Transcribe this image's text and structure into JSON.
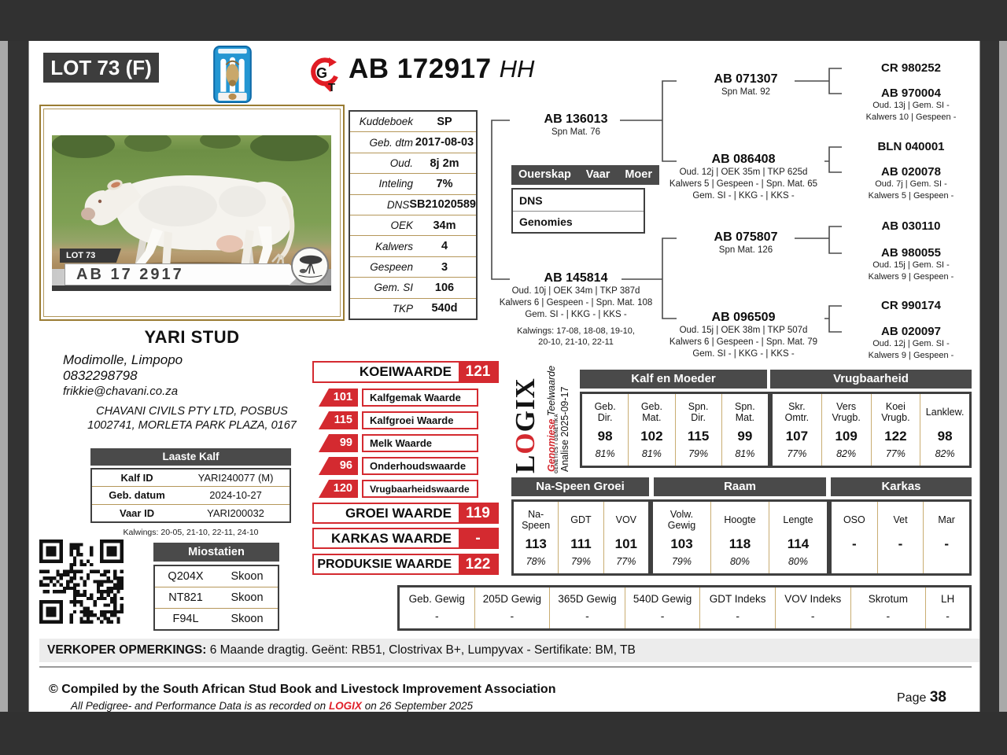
{
  "page": {
    "lot_badge": "LOT 73 (F)",
    "title_id": "AB 172917",
    "title_suffix": "HH",
    "page_label": "Page",
    "page_number": "38"
  },
  "logos": {
    "gt_g": "G",
    "gt_t": "T",
    "logix_l": "L",
    "logix_o": "O",
    "logix_gix": "GIX",
    "logix_tagline": "GENETICS / GENETIKA",
    "logix_line1_red": "Genomiese",
    "logix_line1_black": " Teelwaarde",
    "logix_line2": "Analise 2025-09-17"
  },
  "photo": {
    "lot_tag": "LOT 73",
    "animal_id": "AB 17 2917"
  },
  "info_table": {
    "rows": [
      {
        "label": "Kuddeboek",
        "value": "SP"
      },
      {
        "label": "Geb. dtm",
        "value": "2017-08-03"
      },
      {
        "label": "Oud.",
        "value": "8j 2m"
      },
      {
        "label": "Inteling",
        "value": "7%"
      },
      {
        "label": "DNS",
        "value": "SB21020589"
      },
      {
        "label": "OEK",
        "value": "34m"
      },
      {
        "label": "Kalwers",
        "value": "4"
      },
      {
        "label": "Gespeen",
        "value": "3"
      },
      {
        "label": "Gem. SI",
        "value": "106"
      },
      {
        "label": "TKP",
        "value": "540d"
      }
    ]
  },
  "ouerskap": {
    "headers": [
      "Ouerskap",
      "Vaar",
      "Moer"
    ],
    "rows": [
      "DNS",
      "Genomies"
    ]
  },
  "pedigree": {
    "sire": {
      "id": "AB 136013",
      "line1": "Spn Mat. 76"
    },
    "dam": {
      "id": "AB 145814",
      "line1": "Oud. 10j | OEK 34m | TKP 387d",
      "line2": "Kalwers 6 | Gespeen - | Spn. Mat. 108",
      "line3": "Gem. SI - | KKG - | KKS -",
      "kalwings1": "Kalwings: 17-08, 18-08, 19-10,",
      "kalwings2": "20-10, 21-10, 22-11"
    },
    "gen2": [
      {
        "id": "AB 071307",
        "line1": "Spn Mat. 92"
      },
      {
        "id": "AB 086408",
        "line1": "Oud. 12j | OEK 35m | TKP 625d",
        "line2": "Kalwers 5 | Gespeen - | Spn. Mat. 65",
        "line3": "Gem. SI - | KKG - | KKS -"
      },
      {
        "id": "AB 075807",
        "line1": "Spn Mat. 126"
      },
      {
        "id": "AB 096509",
        "line1": "Oud. 15j | OEK 38m | TKP 507d",
        "line2": "Kalwers 6 | Gespeen - | Spn. Mat. 79",
        "line3": "Gem. SI - | KKG - | KKS -"
      }
    ],
    "gen3": [
      {
        "id": "CR 980252"
      },
      {
        "id": "AB 970004",
        "line1": "Oud. 13j | Gem. SI -",
        "line2": "Kalwers 10 | Gespeen -"
      },
      {
        "id": "BLN 040001"
      },
      {
        "id": "AB 020078",
        "line1": "Oud. 7j | Gem. SI -",
        "line2": "Kalwers 5 | Gespeen -"
      },
      {
        "id": "AB 030110"
      },
      {
        "id": "AB 980055",
        "line1": "Oud. 15j | Gem. SI -",
        "line2": "Kalwers 9 | Gespeen -"
      },
      {
        "id": "CR 990174"
      },
      {
        "id": "AB 020097",
        "line1": "Oud. 12j | Gem. SI -",
        "line2": "Kalwers 9 | Gespeen -"
      }
    ]
  },
  "breeder": {
    "stud_name": "YARI STUD",
    "location": "Modimolle, Limpopo",
    "phone": "0832298798",
    "email": "frikkie@chavani.co.za",
    "address1": "CHAVANI CIVILS PTY LTD, POSBUS",
    "address2": "1002741, MORLETA PARK PLAZA, 0167"
  },
  "laaste_kalf": {
    "header": "Laaste Kalf",
    "rows": [
      {
        "label": "Kalf ID",
        "value": "YARI240077 (M)"
      },
      {
        "label": "Geb. datum",
        "value": "2024-10-27"
      },
      {
        "label": "Vaar ID",
        "value": "YARI200032"
      }
    ],
    "kalwings": "Kalwings: 20-05, 21-10, 22-11, 24-10"
  },
  "miostatien": {
    "header": "Miostatien",
    "rows": [
      {
        "code": "Q204X",
        "status": "Skoon"
      },
      {
        "code": "NT821",
        "status": "Skoon"
      },
      {
        "code": "F94L",
        "status": "Skoon"
      }
    ]
  },
  "waardes": {
    "main": {
      "label": "KOEIWAARDE",
      "value": "121"
    },
    "sub": [
      {
        "value": "101",
        "label": "Kalfgemak Waarde"
      },
      {
        "value": "115",
        "label": "Kalfgroei Waarde"
      },
      {
        "value": "99",
        "label": "Melk Waarde"
      },
      {
        "value": "96",
        "label": "Onderhoudswaarde"
      },
      {
        "value": "120",
        "label": "Vrugbaarheidswaarde"
      }
    ],
    "groei": {
      "label": "GROEI WAARDE",
      "value": "119"
    },
    "karkas": {
      "label": "KARKAS WAARDE",
      "value": "-"
    },
    "produksie": {
      "label": "PRODUKSIE WAARDE",
      "value": "122"
    }
  },
  "ebv_top": {
    "groups": [
      {
        "header": "Kalf en Moeder",
        "cols": [
          {
            "name": "Geb.\nDir.",
            "value": "98",
            "acc": "81%"
          },
          {
            "name": "Geb.\nMat.",
            "value": "102",
            "acc": "81%"
          },
          {
            "name": "Spn.\nDir.",
            "value": "115",
            "acc": "79%"
          },
          {
            "name": "Spn.\nMat.",
            "value": "99",
            "acc": "81%"
          }
        ]
      },
      {
        "header": "Vrugbaarheid",
        "cols": [
          {
            "name": "Skr.\nOmtr.",
            "value": "107",
            "acc": "77%"
          },
          {
            "name": "Vers\nVrugb.",
            "value": "109",
            "acc": "82%"
          },
          {
            "name": "Koei\nVrugb.",
            "value": "122",
            "acc": "77%"
          },
          {
            "name": "Lanklew.",
            "value": "98",
            "acc": "82%"
          }
        ]
      }
    ]
  },
  "ebv_mid": {
    "groups": [
      {
        "header": "Na-Speen Groei",
        "cols": [
          {
            "name": "Na-\nSpeen",
            "value": "113",
            "acc": "78%"
          },
          {
            "name": "GDT",
            "value": "111",
            "acc": "79%"
          },
          {
            "name": "VOV",
            "value": "101",
            "acc": "77%"
          }
        ]
      },
      {
        "header": "Raam",
        "cols": [
          {
            "name": "Volw.\nGewig",
            "value": "103",
            "acc": "79%"
          },
          {
            "name": "Hoogte",
            "value": "118",
            "acc": "80%"
          },
          {
            "name": "Lengte",
            "value": "114",
            "acc": "80%"
          }
        ]
      },
      {
        "header": "Karkas",
        "cols": [
          {
            "name": "OSO",
            "value": "-",
            "acc": ""
          },
          {
            "name": "Vet",
            "value": "-",
            "acc": ""
          },
          {
            "name": "Mar",
            "value": "-",
            "acc": ""
          }
        ]
      }
    ]
  },
  "gewig": {
    "cols": [
      {
        "name": "Geb. Gewig",
        "value": "-"
      },
      {
        "name": "205D Gewig",
        "value": "-"
      },
      {
        "name": "365D Gewig",
        "value": "-"
      },
      {
        "name": "540D Gewig",
        "value": "-"
      },
      {
        "name": "GDT Indeks",
        "value": "-"
      },
      {
        "name": "VOV Indeks",
        "value": "-"
      },
      {
        "name": "Skrotum",
        "value": "-"
      },
      {
        "name": "LH",
        "value": "-"
      }
    ]
  },
  "remarks": {
    "label": "VERKOPER OPMERKINGS:",
    "text": " 6 Maande dragtig. Geënt: RB51, Clostrivax B+, Lumpyvax - Sertifikate: BM, TB"
  },
  "footer": {
    "line1": "© Compiled by the South African Stud Book and Livestock Improvement Association",
    "line2_pre": "All Pedigree- and Performance Data is as recorded on ",
    "line2_logix": "LOGIX",
    "line2_post": " on 26 September 2025",
    "page_label": "Page "
  },
  "colors": {
    "accent_red": "#d42a30",
    "gold": "#b5975a",
    "header_gray": "#4a4a4a",
    "logo_blue": "#2496d2"
  }
}
